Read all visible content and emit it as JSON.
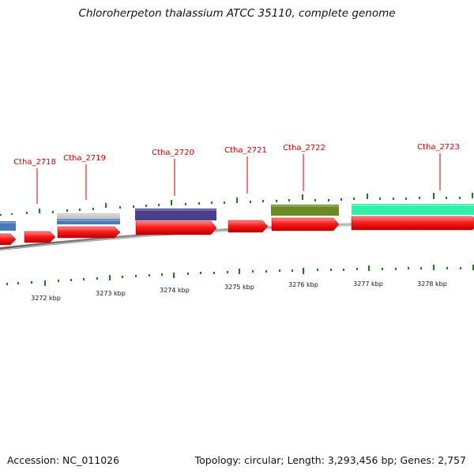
{
  "title": "Chloroherpeton thalassium ATCC 35110, complete genome",
  "footer": {
    "accession": "Accession: NC_011026",
    "summary": "Topology: circular; Length: 3,293,456 bp; Genes: 2,757"
  },
  "colors": {
    "cds_forward": "#ff1a1a",
    "backbone": "#888888",
    "tick": "#1f7a1f",
    "label": "#cc0000",
    "gc_gray": "#c8c8c8",
    "gc_blue": "#4a7ab8",
    "gc_purple": "#4a3f8c",
    "gc_olive": "#6b8a24",
    "gc_teal": "#2ef0a8"
  },
  "gene_labels": [
    "Ctha_2718",
    "Ctha_2719",
    "Ctha_2720",
    "Ctha_2721",
    "Ctha_2722",
    "Ctha_2723"
  ],
  "kbp_labels": [
    "3272 kbp",
    "3273 kbp",
    "3274 kbp",
    "3275 kbp",
    "3276 kbp",
    "3277 kbp",
    "3278 kbp"
  ]
}
